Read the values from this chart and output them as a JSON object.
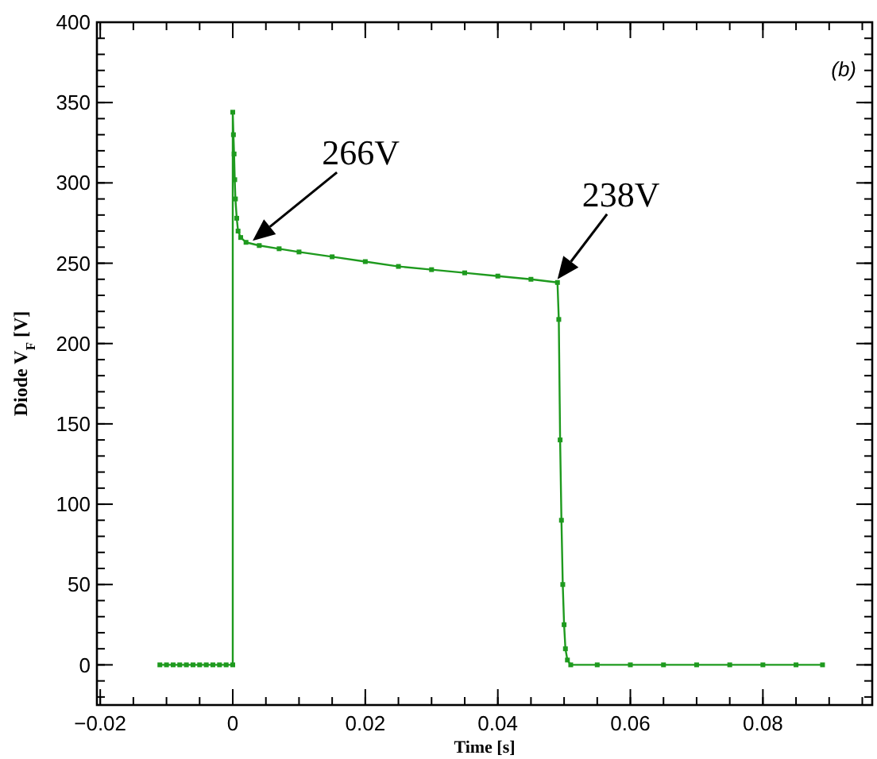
{
  "chart_data": {
    "type": "line",
    "xlabel": "Time [s]",
    "ylabel": "Diode V$_{F}$ [V]",
    "xlim": [
      -0.0205,
      0.0965
    ],
    "xticks": [
      {
        "value": -0.02,
        "label": "−0.02"
      },
      0,
      0.02,
      0.04,
      0.06,
      0.08
    ],
    "ylim": [
      -25,
      400
    ],
    "yticks": [
      0,
      50,
      100,
      150,
      200,
      250,
      300,
      350,
      400
    ],
    "grid": false,
    "marker": "square",
    "line_style": "solid",
    "annotations": [
      {
        "text": "266V",
        "x": 0.003,
        "y": 264
      },
      {
        "text": "238V",
        "x": 0.049,
        "y": 240
      },
      "(b)"
    ],
    "series": [
      {
        "color": "#1e9a1e",
        "x": [
          -0.011,
          -0.01,
          -0.009,
          -0.008,
          -0.007,
          -0.006,
          -0.005,
          -0.004,
          -0.003,
          -0.002,
          -0.001,
          0,
          0,
          0.0001,
          0.0002,
          0.0003,
          0.0004,
          0.0006,
          0.0008,
          0.0012,
          0.002,
          0.004,
          0.007,
          0.01,
          0.015,
          0.02,
          0.025,
          0.03,
          0.035,
          0.04,
          0.045,
          0.049,
          0.0492,
          0.0494,
          0.0496,
          0.0498,
          0.05,
          0.0502,
          0.0505,
          0.051,
          0.055,
          0.06,
          0.065,
          0.07,
          0.075,
          0.08,
          0.085,
          0.089
        ],
        "values": [
          0,
          0,
          0,
          0,
          0,
          0,
          0,
          0,
          0,
          0,
          0,
          0,
          344,
          330,
          318,
          302,
          290,
          278,
          270,
          266,
          263,
          261,
          259,
          257,
          254,
          251,
          248,
          246,
          244,
          242,
          240,
          238,
          215,
          140,
          90,
          50,
          25,
          10,
          3,
          0,
          0,
          0,
          0,
          0,
          0,
          0,
          0,
          0
        ]
      }
    ]
  }
}
